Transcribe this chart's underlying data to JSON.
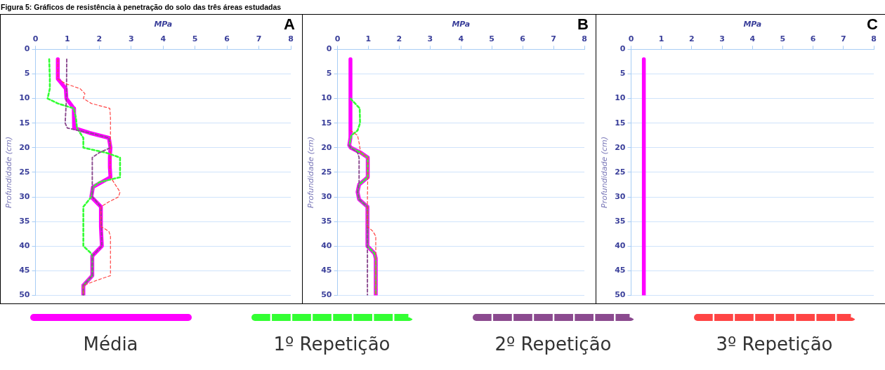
{
  "chart_data": [
    {
      "type": "line",
      "title": "Figura 5: Gráficos de resistência à penetração do solo das três áreas estudadas",
      "xlabel": "MPa",
      "ylabel": "Profundidade (cm)",
      "annotations": [
        "A"
      ],
      "xlim": [
        0,
        8
      ],
      "xticks": [
        0,
        1,
        2,
        3,
        4,
        5,
        6,
        7,
        8
      ],
      "ylim": [
        50,
        0
      ],
      "yticks": [
        0,
        5,
        10,
        15,
        20,
        25,
        30,
        35,
        40,
        45,
        50
      ],
      "grid": "y",
      "legend": "bottom",
      "marker": "none",
      "series": [
        {
          "name": "1º Repetição",
          "color": "#33ff33",
          "line_style": "dashed",
          "x": [
            0.43,
            0.45,
            0.45,
            0.38,
            0.7,
            1.2,
            1.27,
            1.3,
            1.5,
            1.5,
            2.2,
            2.65,
            2.65,
            2.0,
            1.8,
            1.75,
            1.5,
            1.5,
            1.5,
            1.75,
            1.78,
            1.78,
            1.5,
            1.5
          ],
          "values": [
            2,
            6,
            8,
            10,
            11,
            12,
            14,
            16,
            18,
            20,
            21,
            22,
            26,
            27,
            28,
            30,
            32,
            36,
            40,
            41.5,
            42,
            46,
            48,
            50
          ]
        },
        {
          "name": "2º Repetição",
          "color": "#8b4a8f",
          "line_style": "dashed",
          "x": [
            0.98,
            0.97,
            0.93,
            1.0,
            1.7,
            2.3,
            2.35,
            2.0,
            1.78,
            1.78,
            1.78,
            1.78,
            2.05,
            2.08,
            1.78,
            1.78,
            1.5,
            1.5
          ],
          "values": [
            2,
            10,
            15,
            16,
            17,
            18,
            20,
            21,
            22,
            26,
            28,
            30,
            32,
            40,
            42,
            46,
            48,
            50
          ]
        },
        {
          "name": "3º Repetição",
          "color": "#ff4444",
          "line_style": "dashed",
          "x": [
            0.7,
            0.7,
            0.95,
            1.4,
            1.55,
            1.5,
            1.75,
            2.33,
            2.35,
            2.35,
            2.35,
            2.33,
            2.35,
            2.45,
            2.65,
            2.6,
            2.3,
            2.05,
            2.05,
            2.3,
            2.35,
            2.35,
            1.9,
            1.5,
            1.5
          ],
          "values": [
            2,
            6,
            7,
            8,
            9,
            10,
            11,
            12,
            14,
            20,
            22,
            24,
            26,
            27,
            29,
            30,
            31,
            32,
            36,
            37,
            38,
            46,
            47,
            48,
            50
          ]
        },
        {
          "name": "Média",
          "color": "#ff00ff",
          "line_style": "solid",
          "x": [
            0.7,
            0.7,
            0.95,
            0.97,
            1.2,
            1.22,
            1.2,
            1.7,
            2.3,
            2.35,
            2.33,
            2.33,
            2.35,
            1.8,
            1.75,
            2.05,
            2.05,
            2.08,
            1.78,
            1.78,
            1.5,
            1.5
          ],
          "values": [
            2,
            6,
            8,
            10,
            12,
            14,
            16,
            17,
            18,
            20,
            22,
            24,
            26,
            28,
            30,
            32,
            36,
            40,
            42,
            46,
            48,
            50
          ]
        }
      ]
    },
    {
      "type": "line",
      "xlabel": "MPa",
      "ylabel": "Profundidade (cm)",
      "annotations": [
        "B"
      ],
      "xlim": [
        0,
        8
      ],
      "xticks": [
        0,
        1,
        2,
        3,
        4,
        5,
        6,
        7,
        8
      ],
      "ylim": [
        50,
        0
      ],
      "yticks": [
        0,
        5,
        10,
        15,
        20,
        25,
        30,
        35,
        40,
        45,
        50
      ],
      "grid": "y",
      "marker": "none",
      "series": [
        {
          "color": "#33ff33",
          "line_style": "dashed",
          "x": [
            null,
            0.42,
            0.72,
            0.73,
            0.65,
            0.45,
            0.38,
            0.43,
            0.75,
            0.98,
            0.98,
            0.7,
            0.65,
            0.7,
            0.97,
            0.97,
            1.2,
            1.24,
            1.24
          ],
          "values": [
            null,
            10,
            12,
            15,
            16.5,
            17.5,
            19.5,
            20,
            21,
            22,
            26,
            27.5,
            29,
            30.5,
            32,
            40,
            41.5,
            42.5,
            50
          ]
        },
        {
          "color": "#8b4a8f",
          "line_style": "dashed",
          "x": [
            null,
            0.38,
            0.43,
            0.65,
            0.7,
            0.7,
            0.65,
            0.7,
            0.97,
            0.97,
            0.97
          ],
          "values": [
            null,
            19.5,
            20,
            21,
            22,
            27,
            29,
            30.5,
            32,
            40,
            50
          ]
        },
        {
          "color": "#ff4444",
          "line_style": "dashed",
          "x": [
            null,
            0.42,
            0.65,
            0.7,
            0.75,
            0.98,
            0.98,
            0.97,
            0.97,
            1.15,
            1.24,
            1.24
          ],
          "values": [
            null,
            16.5,
            17.5,
            19,
            21,
            22,
            26,
            30,
            36,
            37,
            38,
            50
          ]
        },
        {
          "color": "#ff00ff",
          "line_style": "solid",
          "x": [
            0.42,
            0.42,
            0.38,
            0.43,
            0.75,
            0.98,
            0.98,
            0.7,
            0.65,
            0.7,
            0.97,
            0.97,
            1.2,
            1.24,
            1.24
          ],
          "values": [
            2,
            18,
            19.5,
            20,
            21,
            22,
            26,
            27.5,
            29,
            30.5,
            32,
            40,
            41.5,
            42.5,
            50
          ]
        }
      ]
    },
    {
      "type": "line",
      "xlabel": "MPa",
      "ylabel": "Profundidade (cm)",
      "annotations": [
        "C"
      ],
      "xlim": [
        0,
        8
      ],
      "xticks": [
        0,
        1,
        2,
        3,
        4,
        5,
        6,
        7,
        8
      ],
      "ylim": [
        50,
        0
      ],
      "yticks": [
        0,
        5,
        10,
        15,
        20,
        25,
        30,
        35,
        40,
        45,
        50
      ],
      "grid": "y",
      "marker": "none",
      "series": [
        {
          "color": "#ff00ff",
          "line_style": "solid",
          "x": [
            0.42,
            0.42
          ],
          "values": [
            2,
            50
          ]
        }
      ]
    }
  ]
}
